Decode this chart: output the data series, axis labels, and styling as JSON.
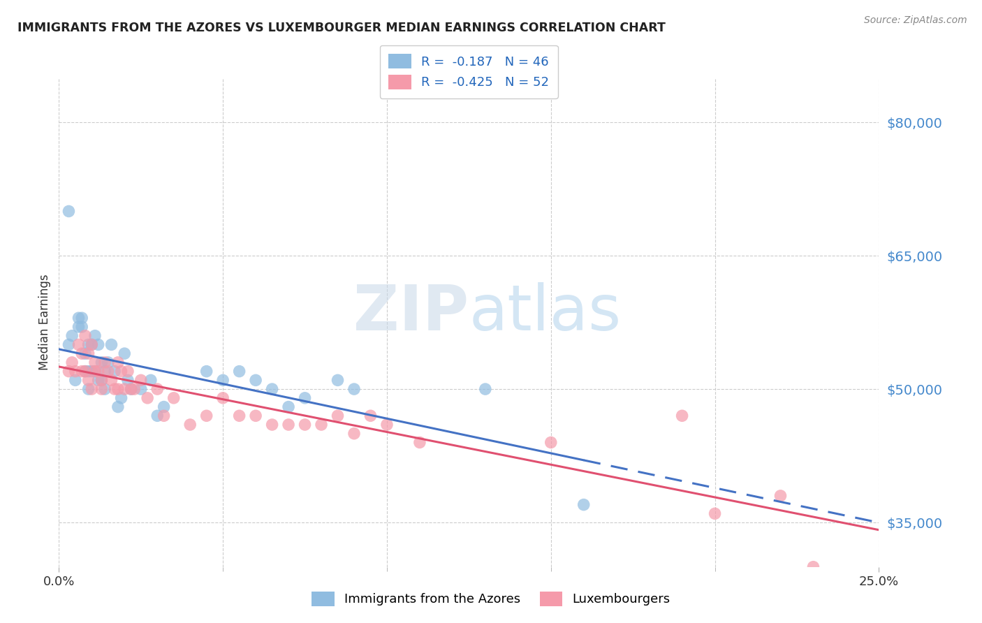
{
  "title": "IMMIGRANTS FROM THE AZORES VS LUXEMBOURGER MEDIAN EARNINGS CORRELATION CHART",
  "source": "Source: ZipAtlas.com",
  "ylabel": "Median Earnings",
  "yticks": [
    35000,
    50000,
    65000,
    80000
  ],
  "ytick_labels": [
    "$35,000",
    "$50,000",
    "$65,000",
    "$80,000"
  ],
  "xlim": [
    0.0,
    0.25
  ],
  "ylim": [
    30000,
    85000
  ],
  "watermark_zip": "ZIP",
  "watermark_atlas": "atlas",
  "blue_color": "#90bce0",
  "pink_color": "#f59aaa",
  "blue_line_color": "#4472c4",
  "pink_line_color": "#e05070",
  "azores_x": [
    0.003,
    0.004,
    0.005,
    0.006,
    0.006,
    0.007,
    0.007,
    0.008,
    0.008,
    0.009,
    0.009,
    0.009,
    0.01,
    0.01,
    0.011,
    0.011,
    0.012,
    0.012,
    0.013,
    0.013,
    0.014,
    0.014,
    0.015,
    0.016,
    0.017,
    0.018,
    0.019,
    0.02,
    0.021,
    0.022,
    0.025,
    0.028,
    0.03,
    0.032,
    0.045,
    0.05,
    0.055,
    0.06,
    0.065,
    0.07,
    0.075,
    0.085,
    0.09,
    0.13,
    0.16,
    0.003
  ],
  "azores_y": [
    55000,
    56000,
    51000,
    57000,
    58000,
    57000,
    58000,
    52000,
    54000,
    52000,
    55000,
    50000,
    52000,
    55000,
    52000,
    56000,
    51000,
    55000,
    51000,
    53000,
    52000,
    50000,
    53000,
    55000,
    52000,
    48000,
    49000,
    54000,
    51000,
    50000,
    50000,
    51000,
    47000,
    48000,
    52000,
    51000,
    52000,
    51000,
    50000,
    48000,
    49000,
    51000,
    50000,
    50000,
    37000,
    70000
  ],
  "lux_x": [
    0.003,
    0.004,
    0.005,
    0.006,
    0.007,
    0.007,
    0.008,
    0.008,
    0.009,
    0.009,
    0.01,
    0.01,
    0.011,
    0.011,
    0.012,
    0.013,
    0.013,
    0.014,
    0.015,
    0.016,
    0.017,
    0.018,
    0.018,
    0.019,
    0.02,
    0.021,
    0.022,
    0.023,
    0.025,
    0.027,
    0.03,
    0.032,
    0.035,
    0.04,
    0.045,
    0.05,
    0.055,
    0.06,
    0.065,
    0.07,
    0.075,
    0.08,
    0.085,
    0.09,
    0.095,
    0.1,
    0.11,
    0.15,
    0.19,
    0.2,
    0.22,
    0.23
  ],
  "lux_y": [
    52000,
    53000,
    52000,
    55000,
    54000,
    52000,
    56000,
    52000,
    54000,
    51000,
    55000,
    50000,
    53000,
    52000,
    52000,
    51000,
    50000,
    53000,
    52000,
    51000,
    50000,
    53000,
    50000,
    52000,
    50000,
    52000,
    50000,
    50000,
    51000,
    49000,
    50000,
    47000,
    49000,
    46000,
    47000,
    49000,
    47000,
    47000,
    46000,
    46000,
    46000,
    46000,
    47000,
    45000,
    47000,
    46000,
    44000,
    44000,
    47000,
    36000,
    38000,
    30000
  ],
  "legend_label_blue": "R =  -0.187   N = 46",
  "legend_label_pink": "R =  -0.425   N = 52",
  "bottom_legend_blue": "Immigrants from the Azores",
  "bottom_legend_pink": "Luxembourgers"
}
